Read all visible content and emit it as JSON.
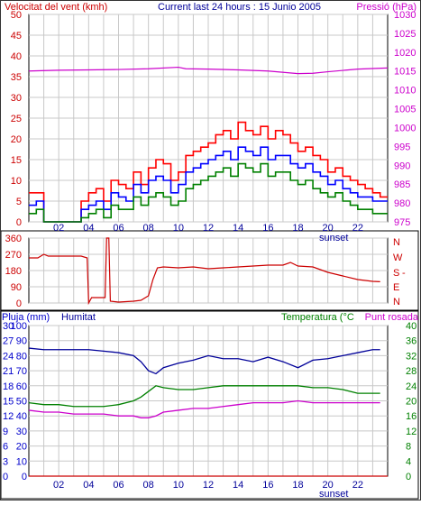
{
  "labels": {
    "wind_speed_title": "Velocitat del vent (kmh)",
    "current_title": "Current last 24 hours : 15 Junio 2005",
    "pressure_title": "Pressió (hPa)",
    "rain_title": "Pluja (mm)",
    "humidity_title": "Humitat",
    "temperature_title": "Temperatura (°C",
    "dewpoint_title": "Punt rosada",
    "sunset_label": "sunset",
    "dir_n": "N",
    "dir_w": "W",
    "dir_s": "S",
    "dir_dash": "-",
    "dir_e": "E",
    "dir_n2": "N"
  },
  "colors": {
    "wind_max": "#ff0000",
    "wind_mid": "#0000ff",
    "wind_avg": "#008000",
    "pressure": "#cc00cc",
    "direction": "#cc0000",
    "humidity": "#000099",
    "temperature": "#008000",
    "dewpoint": "#cc00cc",
    "rain": "#cc0000",
    "grid": "#c8c8c8",
    "axis_red": "#cc0000",
    "axis_blue": "#0000cc",
    "axis_green": "#008000"
  },
  "chart_data": [
    {
      "type": "line",
      "id": "wind-pressure",
      "title": "Current last 24 hours : 15 Junio 2005",
      "x_ticks": [
        "02",
        "04",
        "06",
        "08",
        "10",
        "12",
        "14",
        "16",
        "18",
        "20",
        "22"
      ],
      "y_left": {
        "label": "Velocitat del vent (kmh)",
        "range": [
          0,
          50
        ],
        "ticks": [
          0,
          5,
          10,
          15,
          20,
          25,
          30,
          35,
          40,
          45,
          50
        ]
      },
      "y_right": {
        "label": "Pressió (hPa)",
        "range": [
          975,
          1030
        ],
        "ticks": [
          975,
          980,
          985,
          990,
          995,
          1000,
          1005,
          1010,
          1015,
          1020,
          1025,
          1030
        ]
      },
      "grid": true,
      "series": [
        {
          "name": "Pressió (hPa)",
          "axis": "right",
          "x": [
            0,
            2,
            4,
            6,
            8,
            10,
            10.5,
            12,
            14,
            16,
            18,
            19,
            20,
            22,
            24
          ],
          "y": [
            1015,
            1015.2,
            1015.3,
            1015.4,
            1015.6,
            1016,
            1015.6,
            1015.5,
            1015.3,
            1015,
            1014.3,
            1014.4,
            1014.8,
            1015.5,
            1015.8
          ]
        },
        {
          "axis": "left",
          "x": [
            0,
            0.5,
            1,
            1.5,
            3,
            3.5,
            4,
            4.5,
            5,
            5.5,
            6,
            6.5,
            7,
            7.5,
            8,
            8.5,
            9,
            9.5,
            10,
            10.5,
            11,
            11.5,
            12,
            12.5,
            13,
            13.5,
            14,
            14.5,
            15,
            15.5,
            16,
            16.5,
            17,
            17.5,
            18,
            18.5,
            19,
            19.5,
            20,
            20.5,
            21,
            21.5,
            22,
            22.5,
            23,
            23.5
          ],
          "y": [
            7,
            7,
            0,
            0,
            0,
            5,
            7,
            8,
            5,
            10,
            9,
            8,
            12,
            9,
            13,
            15,
            14,
            10,
            12,
            16,
            17,
            18,
            19,
            21,
            22,
            20,
            24,
            22,
            21,
            23,
            20,
            22,
            21,
            19,
            17,
            18,
            16,
            15,
            12,
            13,
            11,
            10,
            9,
            8,
            7,
            6
          ]
        },
        {
          "axis": "left",
          "x": [
            0,
            0.5,
            1,
            1.5,
            3,
            3.5,
            4,
            4.5,
            5,
            5.5,
            6,
            6.5,
            7,
            7.5,
            8,
            8.5,
            9,
            9.5,
            10,
            10.5,
            11,
            11.5,
            12,
            12.5,
            13,
            13.5,
            14,
            14.5,
            15,
            15.5,
            16,
            16.5,
            17,
            17.5,
            18,
            18.5,
            19,
            19.5,
            20,
            20.5,
            21,
            21.5,
            22,
            22.5,
            23,
            23.5
          ],
          "y": [
            4,
            5,
            0,
            0,
            0,
            3,
            4,
            5,
            3,
            7,
            6,
            5,
            9,
            7,
            10,
            11,
            10,
            7,
            9,
            12,
            13,
            14,
            15,
            16,
            17,
            15,
            18,
            17,
            16,
            18,
            15,
            16,
            16,
            14,
            13,
            14,
            12,
            11,
            9,
            10,
            8,
            7,
            6,
            6,
            5,
            5
          ]
        },
        {
          "axis": "left",
          "x": [
            0,
            0.5,
            1,
            1.5,
            3,
            3.5,
            4,
            4.5,
            5,
            5.5,
            6,
            6.5,
            7,
            7.5,
            8,
            8.5,
            9,
            9.5,
            10,
            10.5,
            11,
            11.5,
            12,
            12.5,
            13,
            13.5,
            14,
            14.5,
            15,
            15.5,
            16,
            16.5,
            17,
            17.5,
            18,
            18.5,
            19,
            19.5,
            20,
            20.5,
            21,
            21.5,
            22,
            22.5,
            23,
            23.5
          ],
          "y": [
            2,
            3,
            0,
            0,
            0,
            1,
            2,
            3,
            1,
            4,
            3,
            3,
            6,
            4,
            6,
            7,
            6,
            4,
            5,
            8,
            9,
            10,
            11,
            12,
            13,
            11,
            14,
            13,
            12,
            14,
            11,
            12,
            12,
            10,
            9,
            10,
            8,
            7,
            6,
            7,
            5,
            4,
            3,
            3,
            2,
            2
          ]
        }
      ]
    },
    {
      "type": "line",
      "id": "wind-direction",
      "y_left": {
        "range": [
          0,
          360
        ],
        "ticks": [
          0,
          90,
          180,
          270,
          360
        ]
      },
      "y_right_ticks": [
        "N",
        "W",
        "S",
        "-",
        "E",
        "N"
      ],
      "grid": true,
      "series": [
        {
          "axis": "left",
          "x": [
            0,
            0.6,
            1,
            1.3,
            3.5,
            3.9,
            4,
            4.2,
            5.1,
            5.2,
            5.35,
            5.45,
            6,
            7,
            7.5,
            8,
            8.3,
            8.6,
            9,
            10,
            11,
            12,
            13,
            14,
            15,
            16,
            17,
            17.5,
            18,
            19,
            19.5,
            20,
            21,
            22,
            23,
            23.5
          ],
          "y": [
            250,
            250,
            270,
            260,
            260,
            250,
            0,
            30,
            30,
            360,
            360,
            10,
            5,
            10,
            15,
            40,
            130,
            195,
            200,
            195,
            200,
            190,
            195,
            200,
            205,
            210,
            210,
            225,
            205,
            200,
            185,
            170,
            150,
            130,
            120,
            118
          ]
        }
      ]
    },
    {
      "type": "line",
      "id": "temp-humidity",
      "y_rain": {
        "label": "Pluja (mm)",
        "range": [
          0,
          30
        ],
        "ticks": [
          0,
          3,
          6,
          9,
          12,
          15,
          18,
          21,
          24,
          27,
          30
        ]
      },
      "y_humidity": {
        "label": "Humitat",
        "range": [
          0,
          100
        ],
        "ticks": [
          0,
          10,
          20,
          30,
          40,
          50,
          60,
          70,
          80,
          90,
          100
        ]
      },
      "y_temp": {
        "label": "Temperatura (°C",
        "range": [
          0,
          40
        ],
        "ticks": [
          0,
          4,
          8,
          12,
          16,
          20,
          24,
          28,
          32,
          36,
          40
        ]
      },
      "dewpoint_label": "Punt rosada",
      "grid": true,
      "series": [
        {
          "name": "Humitat",
          "axis": "humidity",
          "x": [
            0,
            1,
            2,
            3,
            4,
            5,
            6,
            7,
            7.5,
            8,
            8.5,
            9,
            10,
            11,
            12,
            13,
            14,
            15,
            16,
            17,
            18,
            19,
            20,
            21,
            22,
            23,
            23.5
          ],
          "y": [
            85,
            84,
            84,
            84,
            84,
            83,
            82,
            80,
            76,
            70,
            68,
            72,
            75,
            77,
            80,
            78,
            78,
            76,
            79,
            76,
            72,
            77,
            78,
            80,
            82,
            84,
            84
          ]
        },
        {
          "name": "Temperatura (°C",
          "axis": "temp",
          "x": [
            0,
            1,
            2,
            3,
            4,
            5,
            6,
            7,
            7.5,
            8,
            8.5,
            9,
            10,
            11,
            12,
            13,
            14,
            15,
            16,
            17,
            18,
            19,
            20,
            21,
            22,
            23,
            23.5
          ],
          "y": [
            19.5,
            19,
            19,
            18.5,
            18.5,
            18.5,
            19,
            20,
            21,
            22.5,
            24,
            23.5,
            23,
            23,
            23.5,
            24,
            24,
            24,
            24,
            24,
            24,
            23.5,
            23.5,
            23,
            22,
            22,
            22
          ]
        },
        {
          "name": "Punt rosada",
          "axis": "temp",
          "x": [
            0,
            1,
            2,
            3,
            4,
            5,
            6,
            7,
            7.5,
            8,
            8.5,
            9,
            10,
            11,
            12,
            13,
            14,
            15,
            16,
            17,
            18,
            19,
            20,
            21,
            22,
            23,
            23.5
          ],
          "y": [
            17.5,
            17,
            17,
            16.5,
            16.5,
            16.5,
            16,
            16,
            15.5,
            15.5,
            16,
            17,
            17.5,
            18,
            18,
            18.5,
            19,
            19.5,
            19.5,
            19.5,
            20,
            19.5,
            19.5,
            19.5,
            19.5,
            19.5,
            19.5
          ]
        },
        {
          "name": "Pluja (mm)",
          "axis": "rain",
          "x": [
            0,
            24
          ],
          "y": [
            0,
            0
          ]
        }
      ]
    }
  ]
}
